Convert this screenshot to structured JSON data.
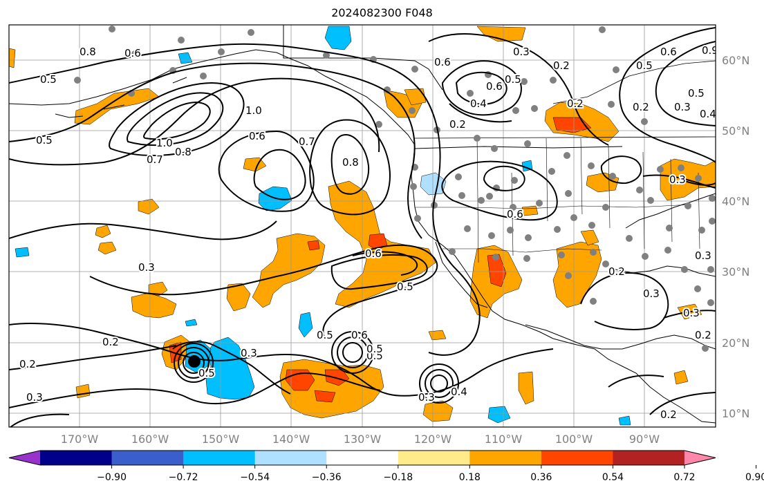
{
  "title": "2024082300 F048",
  "lat_labels": [
    "60°N",
    "50°N",
    "40°N",
    "30°N",
    "20°N",
    "10°N"
  ],
  "lon_labels": [
    "170°W",
    "160°W",
    "150°W",
    "140°W",
    "130°W",
    "120°W",
    "110°W",
    "100°W",
    "90°W"
  ],
  "contour_labels": [
    "0.8",
    "0.6",
    "0.5",
    "0.5",
    "1.0",
    "1.0",
    "0.8",
    "0.7",
    "0.6",
    "0.7",
    "0.8",
    "0.6",
    "0.5",
    "0.5",
    "0.6",
    "0.5",
    "0.3",
    "0.2",
    "0.3",
    "0.2",
    "0.3",
    "0.5",
    "0.3",
    "0.4",
    "0.3",
    "0.2",
    "0.6",
    "0.5",
    "0.4",
    "0.6",
    "0.5",
    "0.2",
    "0.3",
    "0.5",
    "0.6",
    "0.9",
    "0.2",
    "0.4",
    "0.3",
    "0.3",
    "0.2",
    "0.3",
    "0.3",
    "0.2",
    "0.2",
    "0.2",
    "0.6",
    "0.5"
  ],
  "colorbar": {
    "ticks": [
      "−0.90",
      "−0.72",
      "−0.54",
      "−0.36",
      "−0.18",
      "0.18",
      "0.36",
      "0.54",
      "0.72",
      "0.90"
    ],
    "colors": [
      "#9932cc",
      "#00008b",
      "#3a5fcd",
      "#00bfff",
      "#b0e0ff",
      "#ffffff",
      "#ffeb8a",
      "#ffa500",
      "#ff4500",
      "#b22222",
      "#ff88aa"
    ]
  }
}
